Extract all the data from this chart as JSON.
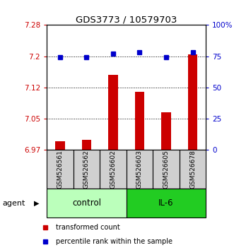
{
  "title": "GDS3773 / 10579703",
  "samples": [
    "GSM526561",
    "GSM526562",
    "GSM526602",
    "GSM526603",
    "GSM526605",
    "GSM526678"
  ],
  "bar_values": [
    6.996,
    6.999,
    7.155,
    7.115,
    7.065,
    7.205
  ],
  "percentile_values": [
    74,
    74,
    77,
    78,
    74,
    78
  ],
  "ylim_left": [
    6.975,
    7.275
  ],
  "ylim_right": [
    0,
    100
  ],
  "yticks_left": [
    6.975,
    7.05,
    7.125,
    7.2,
    7.275
  ],
  "yticks_right": [
    0,
    25,
    50,
    75,
    100
  ],
  "ytick_labels_right": [
    "0",
    "25",
    "50",
    "75",
    "100%"
  ],
  "bar_color": "#cc0000",
  "dot_color": "#0000cc",
  "group_labels": [
    "control",
    "IL-6"
  ],
  "group_ranges": [
    [
      0,
      3
    ],
    [
      3,
      6
    ]
  ],
  "group_colors_light": "#bbffbb",
  "group_colors_dark": "#22cc22",
  "agent_label": "agent",
  "legend_bar_label": "transformed count",
  "legend_dot_label": "percentile rank within the sample",
  "bar_width": 0.35,
  "background_color": "#ffffff",
  "axis_color_left": "#cc0000",
  "axis_color_right": "#0000cc",
  "title_color": "#000000",
  "figsize": [
    3.31,
    3.54
  ],
  "dpi": 100
}
